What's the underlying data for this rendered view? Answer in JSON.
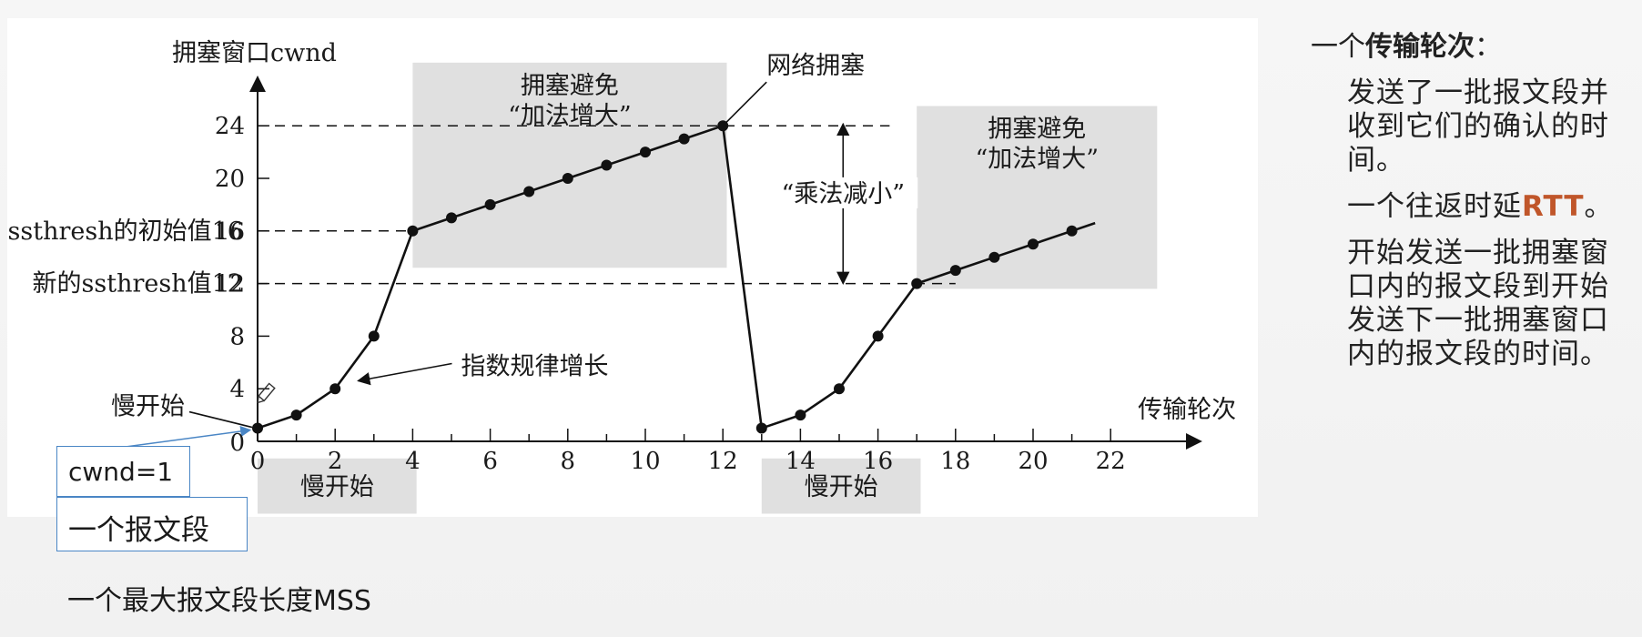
{
  "chart_data": {
    "type": "line",
    "ylabel": "拥塞窗口cwnd",
    "xlabel": "传输轮次",
    "x_ticks": [
      0,
      2,
      4,
      6,
      8,
      10,
      12,
      14,
      16,
      18,
      20,
      22
    ],
    "y_ticks": [
      4,
      8,
      12,
      16,
      20,
      24
    ],
    "y_zero_label": "0",
    "xlim": [
      0,
      23.5
    ],
    "ylim": [
      0,
      27
    ],
    "series": [
      {
        "x": [
          0,
          1,
          2,
          3,
          4,
          5,
          6,
          7,
          8,
          9,
          10,
          11,
          12,
          13,
          14,
          15,
          16,
          17,
          18,
          19,
          20,
          21
        ],
        "y": [
          1,
          2,
          4,
          8,
          16,
          17,
          18,
          19,
          20,
          21,
          22,
          23,
          24,
          1,
          2,
          4,
          8,
          12,
          13,
          14,
          15,
          16
        ]
      }
    ],
    "trend_extension": {
      "x": [
        21,
        21.6
      ],
      "y": [
        16,
        16.6
      ]
    },
    "reference_lines": [
      {
        "label": "ssthresh的初始值16",
        "y": 16,
        "x_from": 0,
        "x_to": 4
      },
      {
        "label": "新的ssthresh值12",
        "y": 12,
        "x_from": 0,
        "x_to": 18
      },
      {
        "label": "",
        "y": 24,
        "x_from": 0,
        "x_to": 16.3
      }
    ],
    "regions": [
      {
        "x0": 4,
        "x1": 12.1,
        "y0": 13.2,
        "y1": 28.8,
        "label_lines": [
          "拥塞避免",
          "“加法增大”"
        ]
      },
      {
        "x0": 17,
        "x1": 23.2,
        "y0": 11.6,
        "y1": 25.5,
        "label_lines": [
          "拥塞避免",
          "“加法增大”"
        ]
      },
      {
        "x0": 0,
        "x1": 4.1,
        "y0": -5.5,
        "y1": -1.3,
        "label_lines": [
          "慢开始"
        ]
      },
      {
        "x0": 13,
        "x1": 17.1,
        "y0": -5.5,
        "y1": -1.3,
        "label_lines": [
          "慢开始"
        ]
      }
    ],
    "annotations": [
      {
        "text": "网络拥塞",
        "target_x": 12,
        "target_y": 24
      },
      {
        "text": "指数规律增长",
        "target_x": 2.5,
        "target_y": 5.5
      },
      {
        "text": "慢开始",
        "target_x": 0,
        "target_y": 1
      },
      {
        "text": "“乘法减小”",
        "from_y": 24,
        "to_y": 12,
        "at_x": 15.1
      }
    ],
    "grid": false,
    "legend": "none"
  },
  "callouts": {
    "cwnd": "cwnd=1",
    "segment": "一个报文段",
    "mss": "一个最大报文段长度MSS"
  },
  "notes": {
    "heading_prefix": "一个",
    "heading_bold": "传输轮次",
    "heading_suffix": "：",
    "para1": "发送了一批报文段并收到它们的确认的时间。",
    "para2_prefix": "一个往返时延",
    "para2_accent": "RTT",
    "para2_suffix": "。",
    "para3": "开始发送一批拥塞窗口内的报文段到开始发送下一批拥塞窗口内的报文段的时间。"
  },
  "colors": {
    "region_fill": "#e0e0e0",
    "line": "#111111",
    "callout_border": "#4a86c5",
    "accent": "#c0562a",
    "pencil": "pencil-icon"
  }
}
